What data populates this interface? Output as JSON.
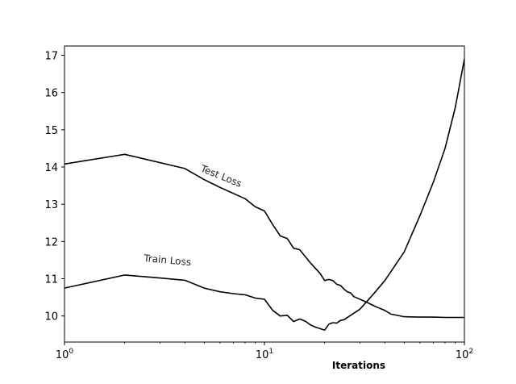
{
  "chart_data": {
    "type": "line",
    "title": "",
    "xlabel": "Iterations",
    "ylabel": "",
    "xscale": "log",
    "xlim": [
      1,
      100
    ],
    "ylim": [
      9.3,
      17.25
    ],
    "grid": false,
    "x_ticks": [
      {
        "value": 1,
        "base": "10",
        "exp": "0"
      },
      {
        "value": 10,
        "base": "10",
        "exp": "1"
      },
      {
        "value": 100,
        "base": "10",
        "exp": "2"
      }
    ],
    "y_ticks": [
      {
        "value": 10,
        "label": "10"
      },
      {
        "value": 11,
        "label": "11"
      },
      {
        "value": 12,
        "label": "12"
      },
      {
        "value": 13,
        "label": "13"
      },
      {
        "value": 14,
        "label": "14"
      },
      {
        "value": 15,
        "label": "15"
      },
      {
        "value": 16,
        "label": "16"
      },
      {
        "value": 17,
        "label": "17"
      }
    ],
    "series": [
      {
        "name": "Test Loss",
        "color": "#000000",
        "x": [
          1,
          2,
          4,
          5,
          6,
          8,
          9,
          10,
          11,
          12,
          13,
          14,
          15,
          17,
          19,
          20,
          21,
          22,
          23,
          24,
          25,
          26,
          27,
          28,
          30,
          33,
          36,
          40,
          43,
          50,
          60,
          70,
          80,
          90,
          100
        ],
        "y": [
          14.08,
          14.34,
          13.96,
          13.66,
          13.45,
          13.15,
          12.93,
          12.82,
          12.45,
          12.15,
          12.08,
          11.82,
          11.78,
          11.42,
          11.14,
          10.95,
          10.98,
          10.95,
          10.85,
          10.82,
          10.72,
          10.65,
          10.62,
          10.52,
          10.45,
          10.35,
          10.25,
          10.15,
          10.05,
          9.98,
          9.97,
          9.97,
          9.96,
          9.96,
          9.96
        ],
        "annotation": "Test Loss"
      },
      {
        "name": "Train Loss",
        "color": "#000000",
        "x": [
          1,
          2,
          3,
          4,
          5,
          6,
          7,
          8,
          9,
          10,
          11,
          12,
          13,
          14,
          15,
          16,
          17,
          18,
          19,
          20,
          21,
          22,
          23,
          24,
          25,
          27,
          30,
          35,
          40,
          43,
          50,
          60,
          70,
          80,
          90,
          100
        ],
        "y": [
          10.75,
          11.1,
          11.02,
          10.96,
          10.75,
          10.65,
          10.6,
          10.57,
          10.48,
          10.45,
          10.15,
          10.0,
          10.02,
          9.85,
          9.92,
          9.86,
          9.76,
          9.7,
          9.66,
          9.62,
          9.78,
          9.82,
          9.81,
          9.88,
          9.9,
          10.02,
          10.18,
          10.58,
          10.95,
          11.2,
          11.72,
          12.7,
          13.6,
          14.5,
          15.6,
          16.9
        ],
        "annotation": "Train Loss"
      }
    ]
  }
}
